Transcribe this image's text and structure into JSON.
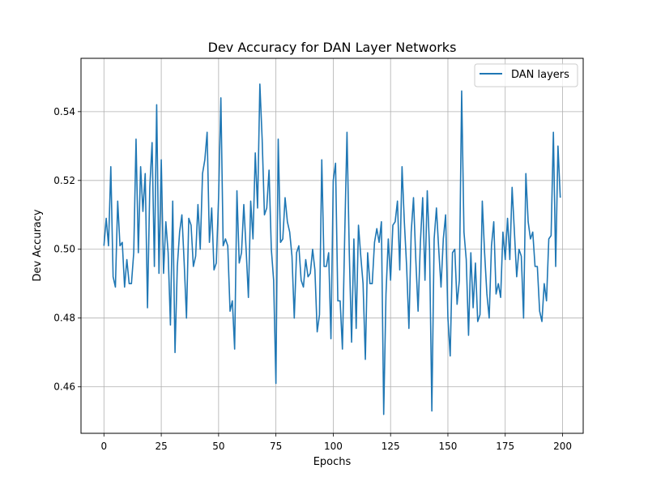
{
  "chart_data": {
    "type": "line",
    "title": "Dev Accuracy for DAN Layer Networks",
    "xlabel": "Epochs",
    "ylabel": "Dev Accuracy",
    "xlim": [
      -10,
      209
    ],
    "ylim": [
      0.4465,
      0.5555
    ],
    "xticks": [
      0,
      25,
      50,
      75,
      100,
      125,
      150,
      175,
      200
    ],
    "yticks": [
      0.46,
      0.48,
      0.5,
      0.52,
      0.54
    ],
    "xtick_labels": [
      "0",
      "25",
      "50",
      "75",
      "100",
      "125",
      "150",
      "175",
      "200"
    ],
    "ytick_labels": [
      "0.46",
      "0.48",
      "0.50",
      "0.52",
      "0.54"
    ],
    "grid": true,
    "legend_position": "top-right",
    "series": [
      {
        "name": "DAN layers",
        "color": "#1f77b4",
        "x": [
          0,
          1,
          2,
          3,
          4,
          5,
          6,
          7,
          8,
          9,
          10,
          11,
          12,
          13,
          14,
          15,
          16,
          17,
          18,
          19,
          20,
          21,
          22,
          23,
          24,
          25,
          26,
          27,
          28,
          29,
          30,
          31,
          32,
          33,
          34,
          35,
          36,
          37,
          38,
          39,
          40,
          41,
          42,
          43,
          44,
          45,
          46,
          47,
          48,
          49,
          50,
          51,
          52,
          53,
          54,
          55,
          56,
          57,
          58,
          59,
          60,
          61,
          62,
          63,
          64,
          65,
          66,
          67,
          68,
          69,
          70,
          71,
          72,
          73,
          74,
          75,
          76,
          77,
          78,
          79,
          80,
          81,
          82,
          83,
          84,
          85,
          86,
          87,
          88,
          89,
          90,
          91,
          92,
          93,
          94,
          95,
          96,
          97,
          98,
          99,
          100,
          101,
          102,
          103,
          104,
          105,
          106,
          107,
          108,
          109,
          110,
          111,
          112,
          113,
          114,
          115,
          116,
          117,
          118,
          119,
          120,
          121,
          122,
          123,
          124,
          125,
          126,
          127,
          128,
          129,
          130,
          131,
          132,
          133,
          134,
          135,
          136,
          137,
          138,
          139,
          140,
          141,
          142,
          143,
          144,
          145,
          146,
          147,
          148,
          149,
          150,
          151,
          152,
          153,
          154,
          155,
          156,
          157,
          158,
          159,
          160,
          161,
          162,
          163,
          164,
          165,
          166,
          167,
          168,
          169,
          170,
          171,
          172,
          173,
          174,
          175,
          176,
          177,
          178,
          179,
          180,
          181,
          182,
          183,
          184,
          185,
          186,
          187,
          188,
          189,
          190,
          191,
          192,
          193,
          194,
          195,
          196,
          197,
          198,
          199
        ],
        "y": [
          0.501,
          0.509,
          0.501,
          0.524,
          0.492,
          0.489,
          0.514,
          0.501,
          0.502,
          0.489,
          0.497,
          0.49,
          0.49,
          0.499,
          0.532,
          0.499,
          0.524,
          0.511,
          0.522,
          0.483,
          0.518,
          0.531,
          0.495,
          0.542,
          0.493,
          0.526,
          0.493,
          0.508,
          0.499,
          0.478,
          0.514,
          0.47,
          0.495,
          0.505,
          0.51,
          0.496,
          0.48,
          0.509,
          0.507,
          0.495,
          0.498,
          0.513,
          0.5,
          0.522,
          0.526,
          0.534,
          0.502,
          0.512,
          0.494,
          0.496,
          0.515,
          0.544,
          0.501,
          0.503,
          0.501,
          0.482,
          0.485,
          0.471,
          0.517,
          0.496,
          0.499,
          0.513,
          0.5,
          0.486,
          0.514,
          0.503,
          0.528,
          0.512,
          0.548,
          0.532,
          0.51,
          0.512,
          0.523,
          0.5,
          0.491,
          0.461,
          0.532,
          0.502,
          0.503,
          0.515,
          0.508,
          0.505,
          0.498,
          0.48,
          0.499,
          0.501,
          0.491,
          0.489,
          0.497,
          0.492,
          0.493,
          0.5,
          0.494,
          0.476,
          0.481,
          0.526,
          0.495,
          0.495,
          0.499,
          0.474,
          0.52,
          0.525,
          0.485,
          0.485,
          0.471,
          0.504,
          0.534,
          0.499,
          0.473,
          0.503,
          0.477,
          0.507,
          0.498,
          0.49,
          0.468,
          0.499,
          0.49,
          0.49,
          0.502,
          0.506,
          0.502,
          0.508,
          0.452,
          0.487,
          0.503,
          0.491,
          0.507,
          0.508,
          0.514,
          0.494,
          0.524,
          0.508,
          0.495,
          0.477,
          0.505,
          0.515,
          0.497,
          0.482,
          0.502,
          0.515,
          0.491,
          0.517,
          0.5,
          0.453,
          0.503,
          0.512,
          0.5,
          0.489,
          0.503,
          0.51,
          0.48,
          0.469,
          0.499,
          0.5,
          0.484,
          0.491,
          0.546,
          0.505,
          0.497,
          0.475,
          0.499,
          0.483,
          0.496,
          0.479,
          0.481,
          0.514,
          0.499,
          0.487,
          0.48,
          0.501,
          0.508,
          0.487,
          0.49,
          0.486,
          0.505,
          0.497,
          0.509,
          0.497,
          0.518,
          0.505,
          0.492,
          0.5,
          0.498,
          0.48,
          0.522,
          0.508,
          0.503,
          0.505,
          0.495,
          0.495,
          0.482,
          0.479,
          0.49,
          0.485,
          0.503,
          0.504,
          0.534,
          0.495,
          0.53,
          0.515
        ]
      }
    ]
  }
}
